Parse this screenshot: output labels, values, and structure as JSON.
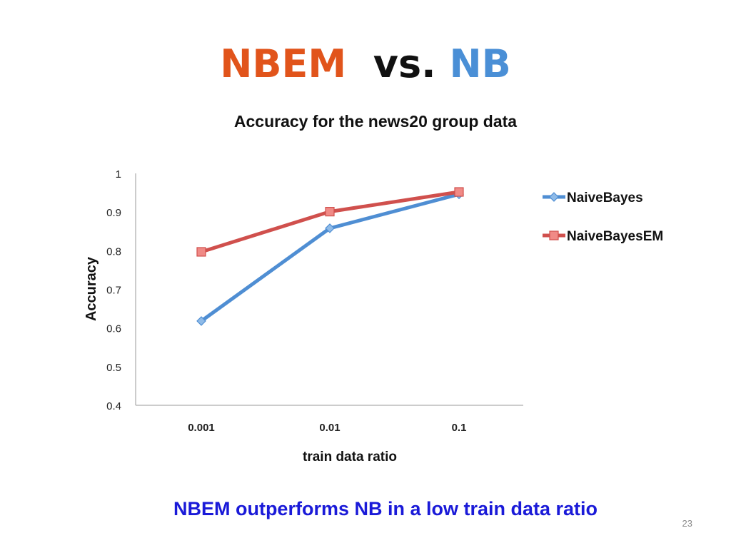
{
  "slide": {
    "title_part1": "NBEM",
    "title_part2": "vs.",
    "title_part3": "NB",
    "title_colors": {
      "part1": "#e1541b",
      "part2": "#111111",
      "part3": "#4a8fd6"
    },
    "caption": "NBEM outperforms NB in a low train data ratio",
    "caption_color": "#1a1ad8",
    "page_number": "23"
  },
  "chart_data": {
    "type": "line",
    "title": "Accuracy for the news20 group data",
    "xlabel": "train data ratio",
    "ylabel": "Accuracy",
    "categories": [
      "0.001",
      "0.01",
      "0.1"
    ],
    "y_ticks": [
      "0.4",
      "0.5",
      "0.6",
      "0.7",
      "0.8",
      "0.9",
      "1"
    ],
    "ylim": [
      0.4,
      1
    ],
    "grid": false,
    "legend_position": "right",
    "series": [
      {
        "name": "NaiveBayes",
        "values": [
          0.618,
          0.858,
          0.946
        ],
        "color": "#4f8ed3",
        "marker": "diamond"
      },
      {
        "name": "NaiveBayesEM",
        "values": [
          0.797,
          0.901,
          0.952
        ],
        "color": "#d0504d",
        "marker": "square"
      }
    ]
  }
}
